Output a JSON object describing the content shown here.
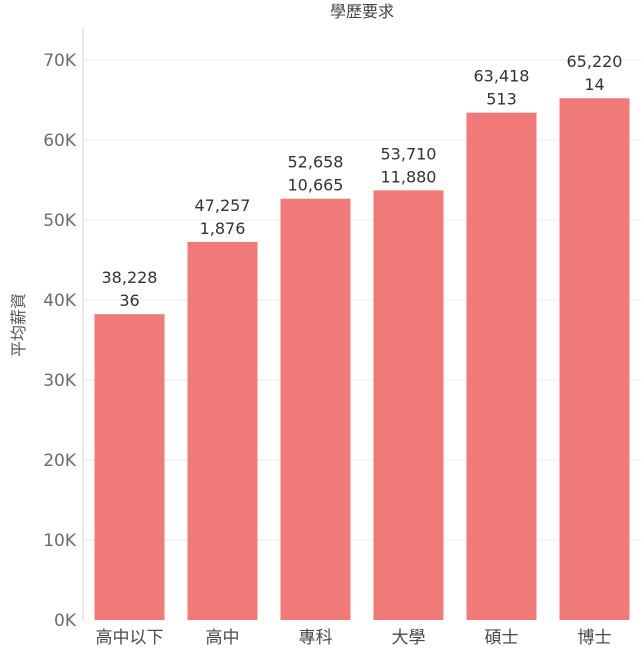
{
  "chart_data": {
    "type": "bar",
    "title": "學歷要求",
    "ylabel": "平均薪資",
    "xlabel": "",
    "categories": [
      "高中以下",
      "高中",
      "專科",
      "大學",
      "碩士",
      "博士"
    ],
    "values": [
      38228,
      47257,
      52658,
      53710,
      63418,
      65220
    ],
    "value_labels": [
      "38,228",
      "47,257",
      "52,658",
      "53,710",
      "63,418",
      "65,220"
    ],
    "count_labels": [
      "36",
      "1,876",
      "10,665",
      "11,880",
      "513",
      "14"
    ],
    "ylim": [
      0,
      74000
    ],
    "y_ticks": [
      0,
      10000,
      20000,
      30000,
      40000,
      50000,
      60000,
      70000
    ],
    "y_tick_labels": [
      "0K",
      "10K",
      "20K",
      "30K",
      "40K",
      "50K",
      "60K",
      "70K"
    ],
    "grid": true,
    "bar_color": "#f07a77"
  }
}
